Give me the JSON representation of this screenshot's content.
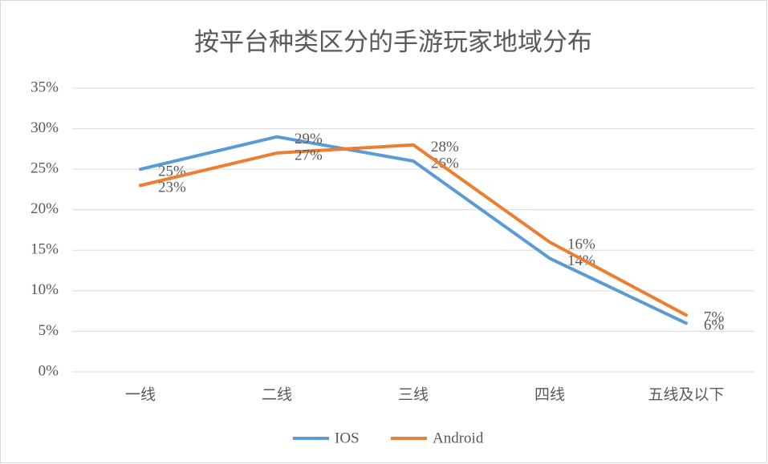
{
  "chart_data": {
    "type": "line",
    "title": "按平台种类区分的手游玩家地域分布",
    "categories": [
      "一线",
      "二线",
      "三线",
      "四线",
      "五线及以下"
    ],
    "series": [
      {
        "name": "IOS",
        "color": "#5b9bd5",
        "values": [
          25,
          29,
          26,
          14,
          6
        ],
        "value_labels": [
          "25%",
          "29%",
          "26%",
          "14%",
          "6%"
        ]
      },
      {
        "name": "Android",
        "color": "#ed7d31",
        "values": [
          23,
          27,
          28,
          16,
          7
        ],
        "value_labels": [
          "23%",
          "27%",
          "28%",
          "16%",
          "7%"
        ]
      }
    ],
    "ylim": [
      0,
      35
    ],
    "yticks": [
      {
        "value": 0,
        "label": "0%"
      },
      {
        "value": 5,
        "label": "5%"
      },
      {
        "value": 10,
        "label": "10%"
      },
      {
        "value": 15,
        "label": "15%"
      },
      {
        "value": 20,
        "label": "20%"
      },
      {
        "value": 25,
        "label": "25%"
      },
      {
        "value": 30,
        "label": "30%"
      },
      {
        "value": 35,
        "label": "35%"
      }
    ],
    "grid": true,
    "legend": "bottom"
  }
}
